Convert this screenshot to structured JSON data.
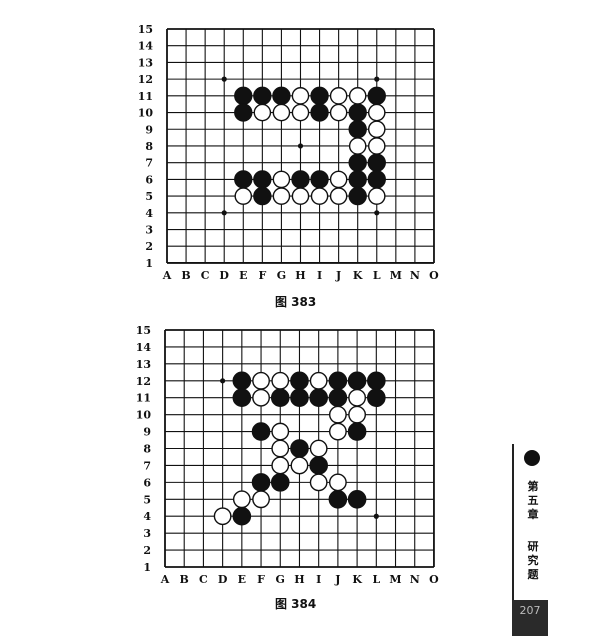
{
  "boards": [
    {
      "caption": "图 383",
      "size": 15,
      "columns": [
        "A",
        "B",
        "C",
        "D",
        "E",
        "F",
        "G",
        "H",
        "I",
        "J",
        "K",
        "L",
        "M",
        "N",
        "O"
      ],
      "rows": [
        "15",
        "14",
        "13",
        "12",
        "11",
        "10",
        "9",
        "8",
        "7",
        "6",
        "5",
        "4",
        "3",
        "2",
        "1"
      ],
      "hoshi": [
        "D12",
        "L12",
        "H8",
        "D4",
        "L4"
      ],
      "black": [
        "E11",
        "F11",
        "G11",
        "I11",
        "L11",
        "E10",
        "I10",
        "K10",
        "K9",
        "K7",
        "L7",
        "E6",
        "F6",
        "H6",
        "I6",
        "K6",
        "L6",
        "F5",
        "K5"
      ],
      "white": [
        "H11",
        "J11",
        "K11",
        "F10",
        "G10",
        "H10",
        "J10",
        "L10",
        "L9",
        "K8",
        "L8",
        "G6",
        "J6",
        "E5",
        "G5",
        "H5",
        "I5",
        "J5",
        "L5"
      ]
    },
    {
      "caption": "图 384",
      "size": 15,
      "columns": [
        "A",
        "B",
        "C",
        "D",
        "E",
        "F",
        "G",
        "H",
        "I",
        "J",
        "K",
        "L",
        "M",
        "N",
        "O"
      ],
      "rows": [
        "15",
        "14",
        "13",
        "12",
        "11",
        "10",
        "9",
        "8",
        "7",
        "6",
        "5",
        "4",
        "3",
        "2",
        "1"
      ],
      "hoshi": [
        "D12",
        "L4"
      ],
      "black": [
        "E12",
        "H12",
        "J12",
        "K12",
        "L12",
        "E11",
        "G11",
        "H11",
        "I11",
        "J11",
        "L11",
        "F9",
        "K9",
        "H8",
        "I7",
        "F6",
        "G6",
        "J5",
        "K5",
        "E4"
      ],
      "white": [
        "F12",
        "G12",
        "I12",
        "F11",
        "K11",
        "J10",
        "K10",
        "G9",
        "J9",
        "G8",
        "I8",
        "G7",
        "H7",
        "I6",
        "J6",
        "E5",
        "F5",
        "D4"
      ]
    }
  ],
  "side_tab": {
    "text_top": "第五章",
    "text_bottom": "研究题",
    "page_number": "207"
  }
}
